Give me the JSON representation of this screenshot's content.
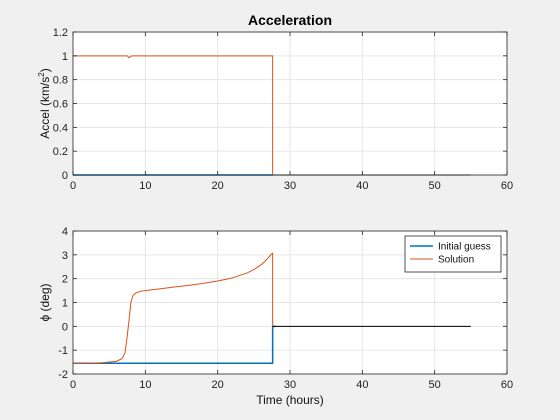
{
  "chart_data": [
    {
      "type": "line",
      "title": "Acceleration",
      "xlabel": "",
      "ylabel": "Accel (km/s",
      "ylabel_sup": "2",
      "ylabel_tail": ")",
      "xlim": [
        0,
        60
      ],
      "ylim": [
        0,
        1.2
      ],
      "xticks": [
        "0",
        "10",
        "20",
        "30",
        "40",
        "50",
        "60"
      ],
      "yticks": [
        "0",
        "0.2",
        "0.4",
        "0.6",
        "0.8",
        "1",
        "1.2"
      ],
      "grid": true,
      "legend": null,
      "series": [
        {
          "color": "#0072bd",
          "width": 1.5,
          "x": [
            0,
            27.6
          ],
          "y": [
            0,
            0
          ]
        },
        {
          "color": "#d95319",
          "width": 1,
          "x": [
            0,
            7.5,
            7.7,
            7.9,
            8.1,
            27.6,
            27.6,
            28,
            55
          ],
          "y": [
            1,
            1,
            0.985,
            0.99,
            1,
            1,
            0,
            0,
            0
          ]
        },
        {
          "color": "#000000",
          "width": 1,
          "x": [
            27.6,
            55
          ],
          "y": [
            0,
            0
          ]
        }
      ]
    },
    {
      "type": "line",
      "title": "",
      "xlabel": "Time (hours)",
      "ylabel": "ϕ (deg)",
      "xlim": [
        0,
        60
      ],
      "ylim": [
        -2,
        4
      ],
      "xticks": [
        "0",
        "10",
        "20",
        "30",
        "40",
        "50",
        "60"
      ],
      "yticks": [
        "-2",
        "-1",
        "0",
        "1",
        "2",
        "3",
        "4"
      ],
      "grid": true,
      "legend": "top-right",
      "series": [
        {
          "name": "Initial guess",
          "color": "#0072bd",
          "width": 1.5,
          "x": [
            0,
            27.6,
            27.6,
            28
          ],
          "y": [
            -1.55,
            -1.55,
            0,
            0
          ]
        },
        {
          "name": "Solution",
          "color": "#d95319",
          "width": 1,
          "x": [
            0,
            2,
            4,
            6,
            6.8,
            7.2,
            7.5,
            7.8,
            8.0,
            8.3,
            8.8,
            9.5,
            10.5,
            12,
            14,
            16,
            18,
            20,
            22,
            24,
            25,
            26,
            26.5,
            27,
            27.4,
            27.6,
            27.6,
            28
          ],
          "y": [
            -1.55,
            -1.55,
            -1.53,
            -1.47,
            -1.35,
            -1.1,
            -0.4,
            0.4,
            1.0,
            1.3,
            1.42,
            1.48,
            1.52,
            1.57,
            1.65,
            1.72,
            1.8,
            1.9,
            2.03,
            2.23,
            2.38,
            2.58,
            2.72,
            2.88,
            3.02,
            3.07,
            0,
            0
          ]
        },
        {
          "color": "#000000",
          "width": 1,
          "x": [
            27.6,
            55
          ],
          "y": [
            0,
            0
          ]
        }
      ]
    }
  ]
}
